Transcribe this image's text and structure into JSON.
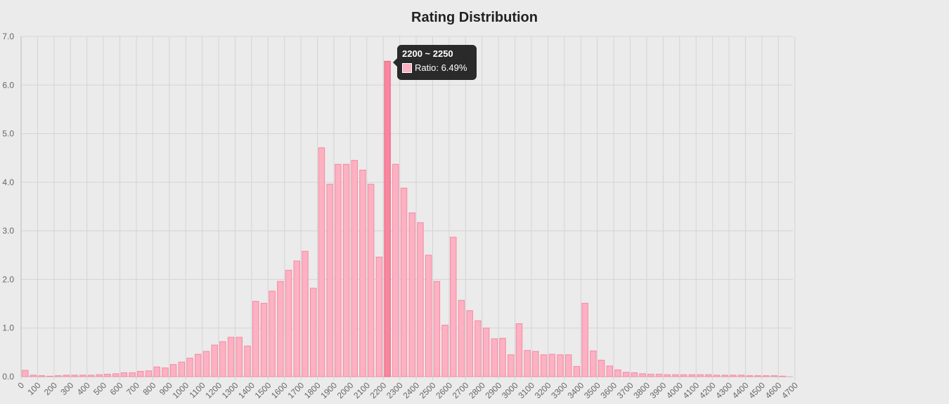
{
  "chart_data": {
    "type": "bar",
    "title": "Rating Distribution",
    "xlabel": "",
    "ylabel": "",
    "bin_width": 50,
    "x_tick_step": 100,
    "ylim": [
      0,
      7
    ],
    "y_ticks": [
      "0.0",
      "1.0",
      "2.0",
      "3.0",
      "4.0",
      "5.0",
      "6.0",
      "7.0"
    ],
    "x_ticks": [
      "0",
      "100",
      "200",
      "300",
      "400",
      "500",
      "600",
      "700",
      "800",
      "900",
      "1000",
      "1100",
      "1200",
      "1300",
      "1400",
      "1500",
      "1600",
      "1700",
      "1800",
      "1900",
      "2000",
      "2100",
      "2200",
      "2300",
      "2400",
      "2500",
      "2600",
      "2700",
      "2800",
      "2900",
      "3000",
      "3100",
      "3200",
      "3300",
      "3400",
      "3500",
      "3600",
      "3700",
      "3800",
      "3900",
      "4000",
      "4100",
      "4200",
      "4300",
      "4400",
      "4500",
      "4600",
      "4700"
    ],
    "series": [
      {
        "name": "Ratio",
        "values": [
          0.13,
          0.03,
          0.02,
          0.01,
          0.02,
          0.03,
          0.03,
          0.03,
          0.03,
          0.04,
          0.05,
          0.06,
          0.08,
          0.08,
          0.11,
          0.12,
          0.2,
          0.18,
          0.25,
          0.3,
          0.38,
          0.46,
          0.52,
          0.65,
          0.72,
          0.81,
          0.81,
          0.63,
          1.55,
          1.51,
          1.76,
          1.96,
          2.19,
          2.38,
          2.58,
          1.82,
          4.71,
          3.96,
          4.37,
          4.37,
          4.45,
          4.25,
          3.96,
          2.46,
          6.49,
          4.37,
          3.88,
          3.37,
          3.17,
          2.5,
          1.96,
          1.06,
          2.87,
          1.57,
          1.36,
          1.15,
          1.0,
          0.78,
          0.79,
          0.45,
          1.09,
          0.54,
          0.52,
          0.45,
          0.46,
          0.45,
          0.45,
          0.21,
          1.51,
          0.53,
          0.34,
          0.22,
          0.14,
          0.09,
          0.08,
          0.06,
          0.05,
          0.05,
          0.04,
          0.04,
          0.04,
          0.04,
          0.04,
          0.04,
          0.03,
          0.03,
          0.03,
          0.03,
          0.02,
          0.02,
          0.02,
          0.02,
          0.01
        ]
      }
    ],
    "highlight_index": 44,
    "tooltip": {
      "title": "2200 ~ 2250",
      "label": "Ratio: 6.49%"
    }
  }
}
